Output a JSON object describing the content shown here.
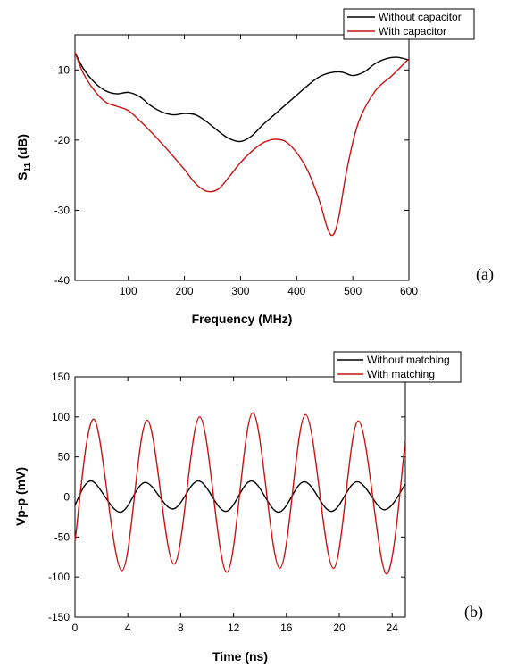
{
  "chart_data": [
    {
      "type": "line",
      "panel_label": "(a)",
      "xlabel": "Frequency (MHz)",
      "ylabel_main": "S",
      "ylabel_sub": "11",
      "ylabel_suffix": " (dB)",
      "xlim": [
        5,
        600
      ],
      "ylim": [
        -40,
        -5
      ],
      "xticks": [
        100,
        200,
        300,
        400,
        500,
        600
      ],
      "yticks": [
        -40,
        -30,
        -20,
        -10
      ],
      "legend_position": "top-right",
      "series": [
        {
          "name": "Without capacitor",
          "color": "#000000",
          "x": [
            5,
            20,
            40,
            60,
            80,
            100,
            120,
            140,
            160,
            180,
            200,
            220,
            240,
            260,
            280,
            300,
            320,
            340,
            360,
            380,
            400,
            420,
            440,
            460,
            480,
            500,
            520,
            540,
            560,
            580,
            600
          ],
          "y": [
            -7.5,
            -9.8,
            -11.8,
            -13.0,
            -13.4,
            -13.2,
            -13.8,
            -15.1,
            -16.0,
            -16.4,
            -16.2,
            -16.4,
            -17.4,
            -18.7,
            -19.8,
            -20.2,
            -19.4,
            -17.8,
            -16.4,
            -15.0,
            -13.6,
            -12.2,
            -11.0,
            -10.4,
            -10.3,
            -10.8,
            -10.3,
            -9.1,
            -8.4,
            -8.2,
            -8.6
          ]
        },
        {
          "name": "With capacitor",
          "color": "#cc1111",
          "x": [
            5,
            20,
            40,
            60,
            80,
            100,
            120,
            140,
            160,
            180,
            200,
            220,
            240,
            260,
            280,
            300,
            320,
            340,
            360,
            380,
            400,
            420,
            440,
            455,
            465,
            475,
            490,
            510,
            540,
            570,
            600
          ],
          "y": [
            -7.5,
            -10.5,
            -13.0,
            -14.6,
            -15.2,
            -15.8,
            -17.2,
            -18.8,
            -20.5,
            -22.3,
            -24.2,
            -26.2,
            -27.3,
            -27.0,
            -25.2,
            -23.2,
            -21.6,
            -20.4,
            -19.9,
            -20.2,
            -21.8,
            -24.4,
            -28.5,
            -32.6,
            -33.5,
            -31.0,
            -24.0,
            -17.5,
            -13.0,
            -10.8,
            -8.4
          ]
        }
      ]
    },
    {
      "type": "line",
      "panel_label": "(b)",
      "xlabel": "Time (ns)",
      "ylabel": "Vp-p (mV)",
      "xlim": [
        0,
        25
      ],
      "ylim": [
        -150,
        150
      ],
      "xticks": [
        0,
        4,
        8,
        12,
        16,
        20,
        24
      ],
      "yticks": [
        -150,
        -100,
        -50,
        0,
        50,
        100,
        150
      ],
      "legend_position": "top-right",
      "series": [
        {
          "name": "Without matching",
          "color": "#000000",
          "x": [
            0,
            1.25,
            3.4,
            5.3,
            7.4,
            9.35,
            11.4,
            13.35,
            15.4,
            17.35,
            19.4,
            21.35,
            23.4,
            25
          ],
          "y": [
            -10,
            20,
            -19,
            18,
            -15,
            20,
            -18,
            20,
            -19,
            19,
            -18,
            19,
            -16,
            16
          ]
        },
        {
          "name": "With matching",
          "color": "#cc1111",
          "x": [
            0,
            1.45,
            3.55,
            5.45,
            7.5,
            9.45,
            11.5,
            13.45,
            15.5,
            17.45,
            19.55,
            21.45,
            23.55,
            25
          ],
          "y": [
            -55,
            97,
            -92,
            96,
            -84,
            100,
            -94,
            105,
            -89,
            103,
            -89,
            95,
            -96,
            70
          ]
        }
      ]
    }
  ]
}
